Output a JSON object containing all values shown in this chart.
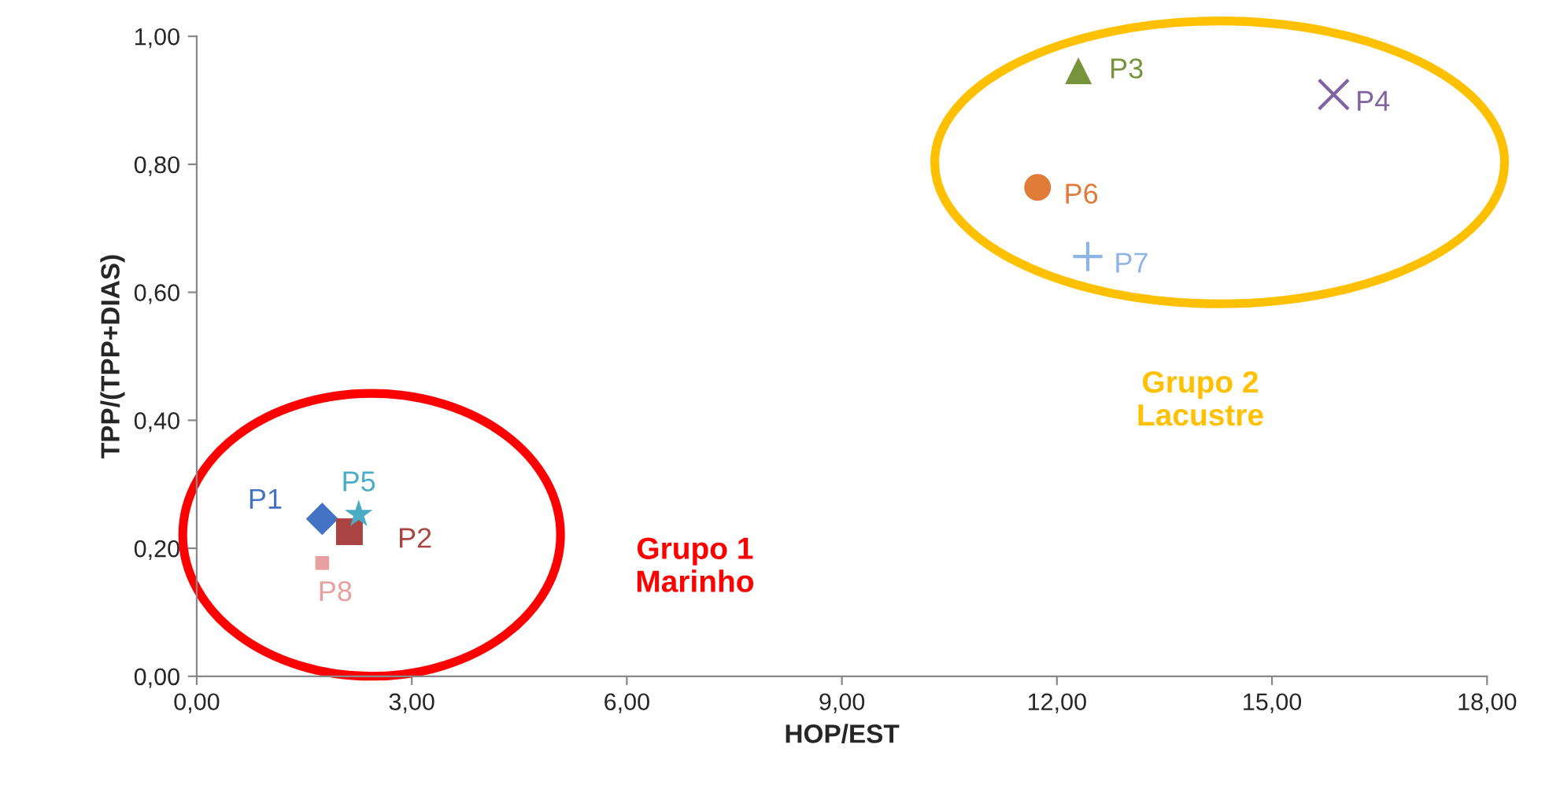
{
  "chart_data": {
    "type": "scatter",
    "xlabel": "HOP/EST",
    "ylabel": "TPP/(TPP+DIAS)",
    "xlim": [
      0,
      18
    ],
    "ylim": [
      0,
      1
    ],
    "xticks": [
      {
        "value": 0,
        "label": "0,00"
      },
      {
        "value": 3,
        "label": "3,00"
      },
      {
        "value": 6,
        "label": "6,00"
      },
      {
        "value": 9,
        "label": "9,00"
      },
      {
        "value": 12,
        "label": "12,00"
      },
      {
        "value": 15,
        "label": "15,00"
      },
      {
        "value": 18,
        "label": "18,00"
      }
    ],
    "yticks": [
      {
        "value": 0,
        "label": "0,00"
      },
      {
        "value": 0.2,
        "label": "0,20"
      },
      {
        "value": 0.4,
        "label": "0,40"
      },
      {
        "value": 0.6,
        "label": "0,60"
      },
      {
        "value": 0.8,
        "label": "0,80"
      },
      {
        "value": 1,
        "label": "1,00"
      }
    ],
    "grid": false,
    "legend": false,
    "series": [
      {
        "name": "P1",
        "color": "#4472c4",
        "marker": "diamond",
        "x": [
          1.75
        ],
        "values": [
          0.246
        ]
      },
      {
        "name": "P2",
        "color": "#a94442",
        "marker": "square",
        "x": [
          2.13
        ],
        "values": [
          0.226
        ]
      },
      {
        "name": "P3",
        "color": "#77933c",
        "marker": "triangle",
        "x": [
          12.3
        ],
        "values": [
          0.946
        ]
      },
      {
        "name": "P4",
        "color": "#8064a2",
        "marker": "x",
        "x": [
          15.86
        ],
        "values": [
          0.909
        ]
      },
      {
        "name": "P5",
        "color": "#4bacc6",
        "marker": "star",
        "x": [
          2.26
        ],
        "values": [
          0.253
        ]
      },
      {
        "name": "P6",
        "color": "#e07b39",
        "marker": "circle",
        "x": [
          11.73
        ],
        "values": [
          0.764
        ]
      },
      {
        "name": "P7",
        "color": "#8eb4e3",
        "marker": "cross",
        "x": [
          12.43
        ],
        "values": [
          0.656
        ]
      },
      {
        "name": "P8",
        "color": "#e6a0a0",
        "marker": "square",
        "x": [
          1.75
        ],
        "values": [
          0.177
        ]
      }
    ],
    "annotations": [
      "Grupo 1\nMarinho",
      "Grupo 2\nLacustre"
    ]
  }
}
